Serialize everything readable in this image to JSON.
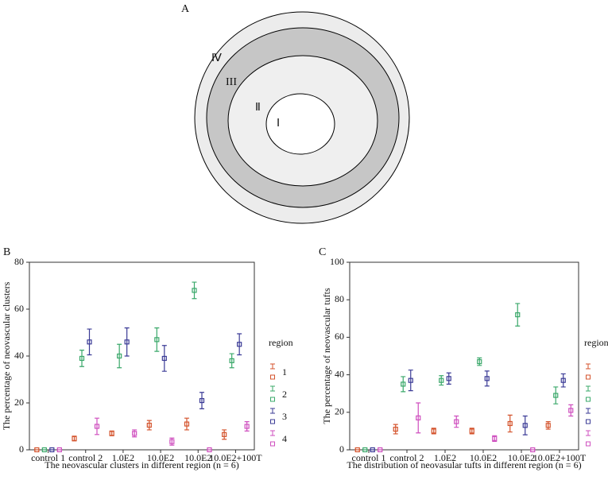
{
  "panel_a": {
    "label": "A",
    "regions": [
      "Ⅳ",
      "III",
      "Ⅱ",
      "Ⅰ"
    ]
  },
  "chart_data": [
    {
      "type": "errorbar",
      "panel_label": "B",
      "y_label": "The percentage of neovascular clusters",
      "x_label": "The neovascular clusters in different region (n = 6)",
      "categories": [
        "control 1",
        "control 2",
        "1.0E2",
        "10.0E2",
        "10.0E2",
        "10.0E2+100T"
      ],
      "ylim": [
        0,
        80
      ],
      "yticks": [
        0,
        20,
        40,
        60,
        80
      ],
      "legend_title": "region",
      "series": [
        {
          "name": "1",
          "color": "#d4532c",
          "values": [
            0,
            4.8,
            7,
            10.5,
            11,
            6.5
          ],
          "errors": [
            0,
            1,
            1,
            2,
            2.5,
            2
          ]
        },
        {
          "name": "2",
          "color": "#3aa86a",
          "values": [
            0,
            39,
            40,
            47,
            68,
            38
          ],
          "errors": [
            0,
            3.5,
            5,
            5,
            3.5,
            3
          ]
        },
        {
          "name": "3",
          "color": "#3b3b96",
          "values": [
            0,
            46,
            46,
            39,
            21,
            45
          ],
          "errors": [
            0,
            5.5,
            6,
            5.5,
            3.5,
            4.5
          ]
        },
        {
          "name": "4",
          "color": "#cf4fbf",
          "values": [
            0,
            10,
            7,
            3.5,
            0,
            10
          ],
          "errors": [
            0,
            3.5,
            1.5,
            1.5,
            0,
            2
          ]
        }
      ]
    },
    {
      "type": "errorbar",
      "panel_label": "C",
      "y_label": "The percentage of neovascular tufts",
      "x_label": "The distribution of neovasular tufts in different region (n = 6)",
      "categories": [
        "control 1",
        "control 2",
        "1.0E2",
        "10.0E2",
        "10.0E2",
        "10.0E2+100T"
      ],
      "ylim": [
        0,
        100
      ],
      "yticks": [
        0,
        20,
        40,
        60,
        80,
        100
      ],
      "legend_title": "region",
      "series": [
        {
          "color": "#d4532c",
          "values": [
            0,
            11,
            10,
            10,
            14,
            13
          ],
          "errors": [
            0,
            2.5,
            1.5,
            1.5,
            4.5,
            2
          ]
        },
        {
          "color": "#3aa86a",
          "values": [
            0,
            35,
            37,
            47,
            72,
            29
          ],
          "errors": [
            0,
            4,
            2.5,
            2,
            6,
            4.5
          ]
        },
        {
          "color": "#3b3b96",
          "values": [
            0,
            37,
            38,
            38,
            13,
            37
          ],
          "errors": [
            0,
            5.5,
            3,
            4,
            5,
            3.5
          ]
        },
        {
          "color": "#cf4fbf",
          "values": [
            0,
            17,
            15,
            6,
            0,
            21
          ],
          "errors": [
            0,
            8,
            3,
            1.5,
            0,
            3
          ]
        }
      ]
    }
  ]
}
